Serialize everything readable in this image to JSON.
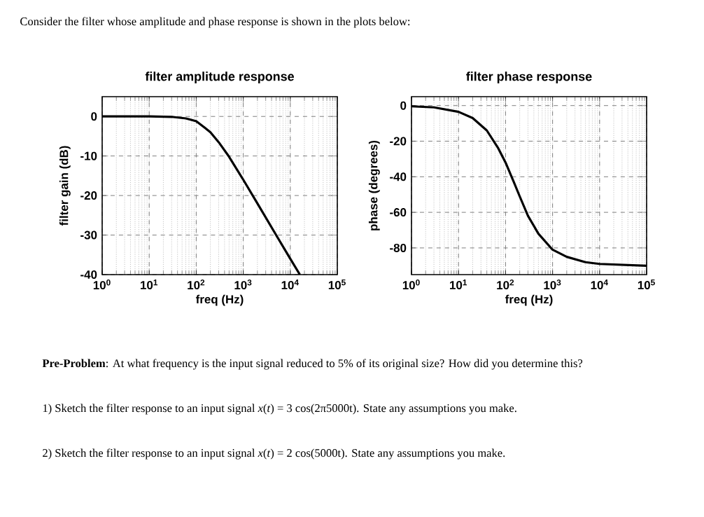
{
  "chart_data": [
    {
      "type": "line",
      "title": "filter amplitude response",
      "xlabel": "freq (Hz)",
      "ylabel": "filter gain (dB)",
      "log": "x",
      "grid": true,
      "color": "#000000",
      "x": [
        1,
        10,
        30,
        60,
        100,
        150,
        200,
        300,
        500,
        1000,
        2000,
        5000,
        10000,
        16000
      ],
      "values": [
        0,
        0,
        -0.1,
        -0.5,
        -1.2,
        -2.8,
        -4,
        -6.5,
        -10.2,
        -16,
        -22,
        -30,
        -36,
        -40
      ],
      "xlim": [
        1,
        100000
      ],
      "ylim": [
        -40,
        5
      ],
      "xticks": [
        {
          "value": 1,
          "label": "10$^{0}$"
        },
        {
          "value": 10,
          "label": "10$^{1}$"
        },
        {
          "value": 100,
          "label": "10$^{2}$"
        },
        {
          "value": 1000,
          "label": "10$^{3}$"
        },
        {
          "value": 10000,
          "label": "10$^{4}$"
        },
        {
          "value": 100000,
          "label": "10$^{5}$"
        }
      ],
      "yticks": [
        0,
        -10,
        -20,
        -30,
        -40
      ]
    },
    {
      "type": "line",
      "title": "filter phase response",
      "xlabel": "freq (Hz)",
      "ylabel": "phase (degrees)",
      "log": "x",
      "grid": true,
      "color": "#000000",
      "x": [
        1,
        3,
        10,
        20,
        40,
        70,
        100,
        150,
        200,
        300,
        500,
        1000,
        2000,
        5000,
        10000,
        100000
      ],
      "values": [
        -0.4,
        -1,
        -3.5,
        -7,
        -14,
        -24,
        -32,
        -43,
        -51,
        -62,
        -72,
        -81,
        -85,
        -88,
        -89,
        -90
      ],
      "xlim": [
        1,
        100000
      ],
      "ylim": [
        -95,
        5
      ],
      "xticks": [
        {
          "value": 1,
          "label": "10$^{0}$"
        },
        {
          "value": 10,
          "label": "10$^{1}$"
        },
        {
          "value": 100,
          "label": "10$^{2}$"
        },
        {
          "value": 1000,
          "label": "10$^{3}$"
        },
        {
          "value": 10000,
          "label": "10$^{4}$"
        },
        {
          "value": 100000,
          "label": "10$^{5}$"
        }
      ],
      "yticks": [
        0,
        -20,
        -40,
        -60,
        -80
      ]
    },
    {
      "type": "other",
      "annotations": [
        "Consider the filter whose amplitude and phase response is shown in the plots below:",
        "**Pre-Problem**: At what frequency is the input signal reduced to 5% of its original size? How did you determine this?",
        "1) Sketch the filter response to an input signal *x*(*t*) = 3 cos(2π5000t). State any assumptions you make.",
        "2) Sketch the filter response to an input signal *x*(*t*) = 2 cos(5000t). State any assumptions you make."
      ]
    }
  ]
}
